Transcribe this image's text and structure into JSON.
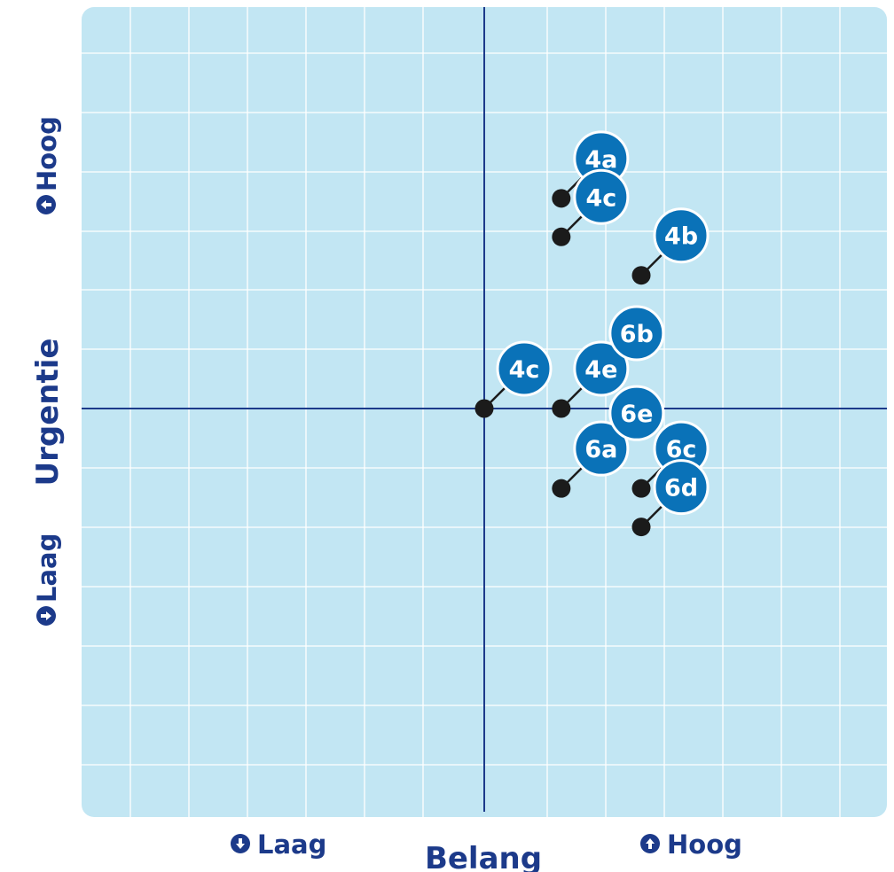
{
  "colors": {
    "background": "#ffffff",
    "plot_bg": "#c2e6f3",
    "grid": "#ffffff",
    "axis": "#1c3a8a",
    "label": "#1c3a8a",
    "badge": "#0a72b8",
    "dot": "#1b1b1b",
    "badge_text": "#ffffff"
  },
  "icons": {
    "up": "arrow-up-circle-icon",
    "down": "arrow-down-circle-icon"
  },
  "chart_data": {
    "type": "scatter",
    "xlabel": "Belang",
    "ylabel": "Urgentie",
    "x_ticks": [
      {
        "label": "Laag",
        "icon": "down"
      },
      {
        "label": "Hoog",
        "icon": "up"
      }
    ],
    "y_ticks": [
      {
        "label": "Laag",
        "icon": "down"
      },
      {
        "label": "Hoog",
        "icon": "up"
      }
    ],
    "points": [
      {
        "label": "4a",
        "x": 1.3,
        "y": 3.55
      },
      {
        "label": "4c",
        "x": 1.3,
        "y": 2.9
      },
      {
        "label": "4b",
        "x": 2.65,
        "y": 2.25
      },
      {
        "label": "4c",
        "x": 0,
        "y": 0
      },
      {
        "label": "4e",
        "x": 1.3,
        "y": 0
      },
      {
        "label": "6b",
        "x": 1.3,
        "y": 0
      },
      {
        "label": "6a",
        "x": 1.3,
        "y": -1.35
      },
      {
        "label": "6e",
        "x": 1.3,
        "y": -1.35
      },
      {
        "label": "6c",
        "x": 2.65,
        "y": -1.35
      },
      {
        "label": "6d",
        "x": 2.65,
        "y": -2.0
      }
    ]
  }
}
